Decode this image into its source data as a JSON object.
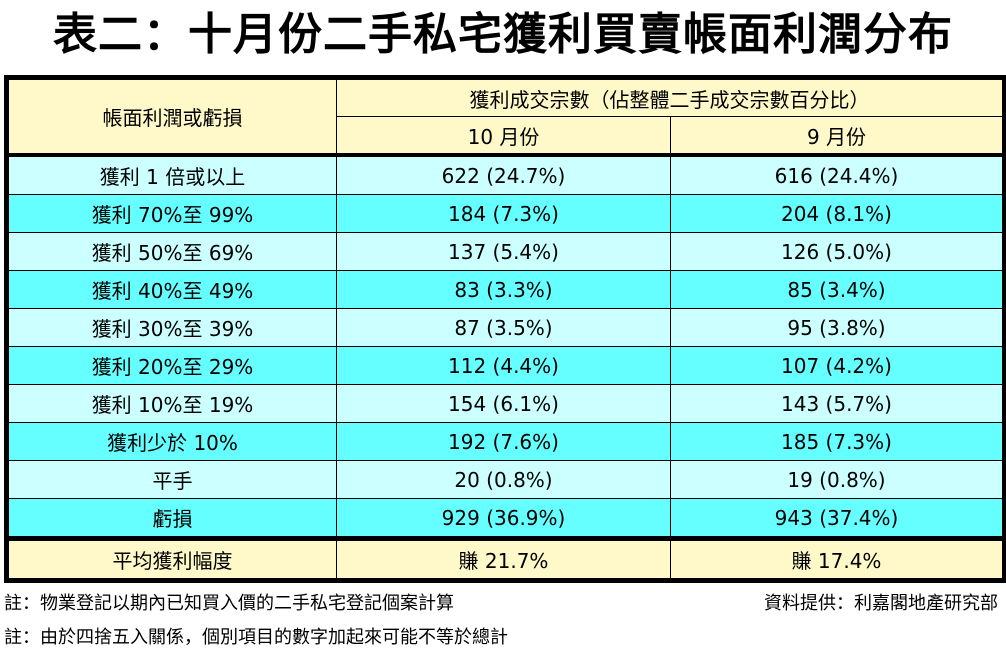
{
  "title": "表二：十月份二手私宅獲利買賣帳面利潤分布",
  "table": {
    "row_header": "帳面利潤或虧損",
    "group_header": "獲利成交宗數（佔整體二手成交宗數百分比）",
    "columns": [
      "10 月份",
      "9 月份"
    ],
    "rows": [
      {
        "label": "獲利 1 倍或以上",
        "oct": "622 (24.7%)",
        "sep": "616 (24.4%)"
      },
      {
        "label": "獲利 70%至 99%",
        "oct": "184 (7.3%)",
        "sep": "204 (8.1%)"
      },
      {
        "label": "獲利 50%至 69%",
        "oct": "137 (5.4%)",
        "sep": "126 (5.0%)"
      },
      {
        "label": "獲利 40%至 49%",
        "oct": "83 (3.3%)",
        "sep": "85 (3.4%)"
      },
      {
        "label": "獲利 30%至 39%",
        "oct": "87 (3.5%)",
        "sep": "95 (3.8%)"
      },
      {
        "label": "獲利 20%至 29%",
        "oct": "112 (4.4%)",
        "sep": "107 (4.2%)"
      },
      {
        "label": "獲利 10%至 19%",
        "oct": "154 (6.1%)",
        "sep": "143 (5.7%)"
      },
      {
        "label": "獲利少於 10%",
        "oct": "192 (7.6%)",
        "sep": "185 (7.3%)"
      },
      {
        "label": "平手",
        "oct": "20 (0.8%)",
        "sep": "19 (0.8%)"
      },
      {
        "label": "虧損",
        "oct": "929 (36.9%)",
        "sep": "943 (37.4%)"
      }
    ],
    "average": {
      "label": "平均獲利幅度",
      "oct": "賺 21.7%",
      "sep": "賺 17.4%"
    }
  },
  "notes": {
    "note1": "註：物業登記以期內已知買入價的二手私宅登記個案計算",
    "source": "資料提供：利嘉閣地產研究部",
    "note2": "註：由於四捨五入關係，個別項目的數字加起來可能不等於總計"
  },
  "colors": {
    "header": "#fff9c9",
    "row_light": "#ccffff",
    "row_dark": "#66ffff"
  }
}
